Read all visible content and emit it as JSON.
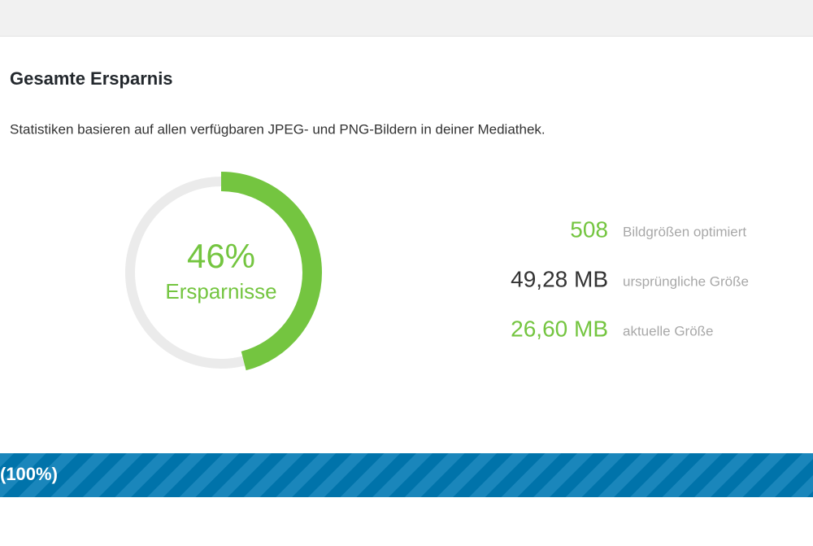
{
  "title": "Gesamte Ersparnis",
  "description": "Statistiken basieren auf allen verfügbaren JPEG- und PNG-Bildern in deiner Mediathek.",
  "savings": {
    "value": 46,
    "value_label": "46%",
    "caption": "Ersparnisse",
    "color": "#74c540",
    "track_color": "#ebebeb"
  },
  "stats": [
    {
      "value": "508",
      "label": "Bildgrößen optimiert",
      "color": "#74c540"
    },
    {
      "value": "49,28 MB",
      "label": "ursprüngliche Größe",
      "color": "#333333"
    },
    {
      "value": "26,60 MB",
      "label": "aktuelle Größe",
      "color": "#74c540"
    }
  ],
  "progress": {
    "value": 100,
    "label": "(100%)"
  }
}
